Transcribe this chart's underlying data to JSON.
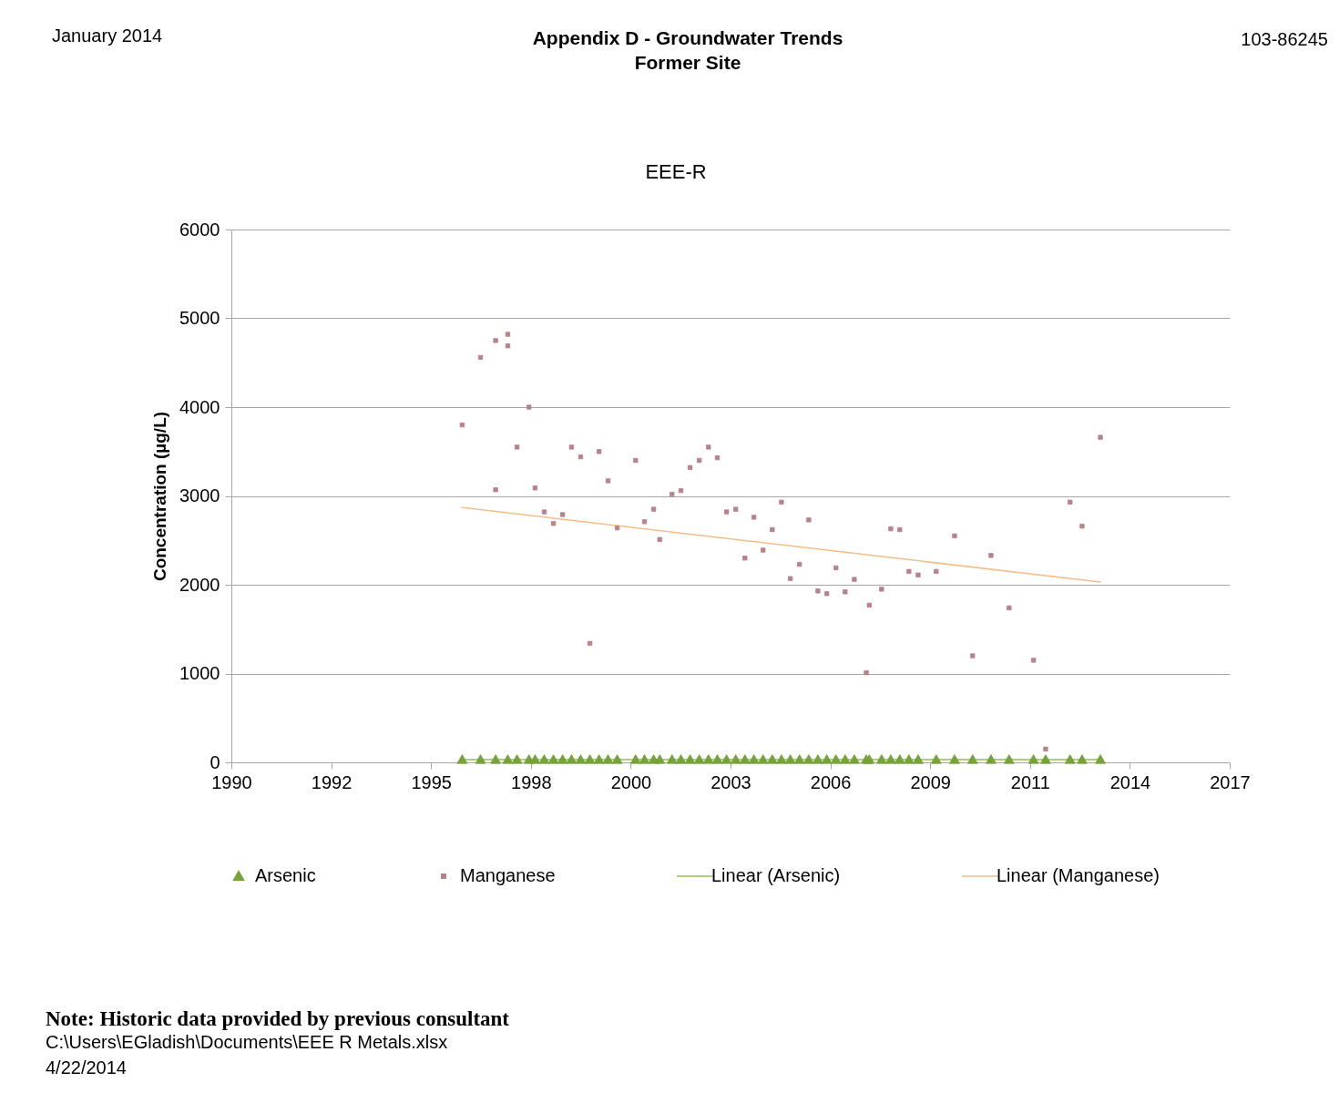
{
  "chart_data": {
    "type": "scatter",
    "title": "Appendix D - Groundwater Trends",
    "subtitle": "Former Site",
    "ylabel": "Concentration (µg/L)",
    "annotations": [
      "January 2014",
      "103-86245",
      "EEE-R",
      "Note: Historic data provided by previous consultant",
      "C:\\Users\\EGladish\\Documents\\EEE R Metals.xlsx",
      "4/22/2014"
    ],
    "xlim": [
      "1990-01-01",
      "2017-05-19"
    ],
    "xticks": [
      {
        "value": "1990-01-01",
        "label": "1990"
      },
      {
        "value": "1992-09-27",
        "label": "1992"
      },
      {
        "value": "1995-06-24",
        "label": "1995"
      },
      {
        "value": "1998-03-20",
        "label": "1998"
      },
      {
        "value": "2000-12-14",
        "label": "2000"
      },
      {
        "value": "2003-09-10",
        "label": "2003"
      },
      {
        "value": "2006-06-06",
        "label": "2006"
      },
      {
        "value": "2009-03-02",
        "label": "2009"
      },
      {
        "value": "2011-11-27",
        "label": "2011"
      },
      {
        "value": "2014-08-23",
        "label": "2014"
      },
      {
        "value": "2017-05-19",
        "label": "2017"
      }
    ],
    "ylim": [
      0,
      6000
    ],
    "yticks": [
      0,
      1000,
      2000,
      3000,
      4000,
      5000,
      6000
    ],
    "grid": "y",
    "legend": "bottom",
    "series": [
      {
        "name": "Arsenic",
        "marker": "triangle",
        "color": "#77a23b",
        "x": [
          "1996-05",
          "1996-11",
          "1997-04",
          "1997-08",
          "1997-11",
          "1998-03",
          "1998-05",
          "1998-08",
          "1998-11",
          "1999-02",
          "1999-05",
          "1999-08",
          "1999-11",
          "2000-02",
          "2000-05",
          "2000-08",
          "2001-02",
          "2001-05",
          "2001-08",
          "2001-10",
          "2002-02",
          "2002-05",
          "2002-08",
          "2002-11",
          "2003-02",
          "2003-05",
          "2003-08",
          "2003-11",
          "2004-02",
          "2004-05",
          "2004-08",
          "2004-11",
          "2005-02",
          "2005-05",
          "2005-08",
          "2005-11",
          "2006-02",
          "2006-05",
          "2006-08",
          "2006-11",
          "2007-02",
          "2007-06",
          "2007-07",
          "2007-11",
          "2008-02",
          "2008-05",
          "2008-08",
          "2008-11",
          "2009-05",
          "2009-11",
          "2010-05",
          "2010-11",
          "2011-05",
          "2012-01",
          "2012-05",
          "2013-01",
          "2013-05",
          "2013-11"
        ],
        "values": [
          30,
          30,
          30,
          30,
          30,
          30,
          30,
          30,
          30,
          30,
          30,
          30,
          30,
          30,
          30,
          30,
          30,
          30,
          30,
          30,
          30,
          30,
          30,
          30,
          30,
          30,
          30,
          30,
          30,
          30,
          30,
          30,
          30,
          30,
          30,
          30,
          30,
          30,
          30,
          30,
          30,
          30,
          30,
          30,
          30,
          30,
          30,
          30,
          30,
          30,
          30,
          30,
          30,
          30,
          30,
          30,
          30,
          30
        ]
      },
      {
        "name": "Manganese",
        "marker": "square",
        "color": "#b5838c",
        "x": [
          "1996-05",
          "1996-11",
          "1997-04",
          "1997-04",
          "1997-08",
          "1997-08",
          "1997-11",
          "1998-03",
          "1998-05",
          "1998-08",
          "1998-11",
          "1999-02",
          "1999-05",
          "1999-08",
          "1999-11",
          "2000-02",
          "2000-05",
          "2000-08",
          "2001-02",
          "2001-05",
          "2001-08",
          "2001-10",
          "2002-02",
          "2002-05",
          "2002-08",
          "2002-11",
          "2003-02",
          "2003-05",
          "2003-08",
          "2003-11",
          "2004-02",
          "2004-05",
          "2004-08",
          "2004-11",
          "2005-02",
          "2005-05",
          "2005-08",
          "2005-11",
          "2006-02",
          "2006-05",
          "2006-08",
          "2006-11",
          "2007-02",
          "2007-06",
          "2007-07",
          "2007-11",
          "2008-02",
          "2008-05",
          "2008-08",
          "2008-11",
          "2009-05",
          "2009-11",
          "2010-05",
          "2010-11",
          "2011-05",
          "2012-01",
          "2012-05",
          "2013-01",
          "2013-05",
          "2013-11"
        ],
        "values": [
          3800,
          4560,
          4750,
          3070,
          4820,
          4690,
          3550,
          4000,
          3090,
          2820,
          2690,
          2790,
          3550,
          3440,
          1340,
          3500,
          3170,
          2640,
          3400,
          2710,
          2850,
          2510,
          3020,
          3060,
          3320,
          3400,
          3550,
          3430,
          2820,
          2850,
          2300,
          2760,
          2390,
          2620,
          2930,
          2070,
          2230,
          2730,
          1930,
          1900,
          2190,
          1920,
          2060,
          1010,
          1770,
          1950,
          2630,
          2620,
          2150,
          2110,
          2150,
          2550,
          1200,
          2330,
          1740,
          1150,
          150,
          2930,
          2660,
          3660
        ]
      },
      {
        "name": "Linear (Arsenic)",
        "type": "line",
        "marker": "none",
        "line_style": "solid",
        "color": "#92c050",
        "x": [
          "1996-05",
          "2013-11"
        ],
        "values": [
          30,
          30
        ]
      },
      {
        "name": "Linear (Manganese)",
        "type": "line",
        "marker": "none",
        "line_style": "solid",
        "color": "#f5bd8a",
        "x": [
          "1996-05",
          "2013-11"
        ],
        "values": [
          2870,
          2030
        ]
      }
    ]
  }
}
